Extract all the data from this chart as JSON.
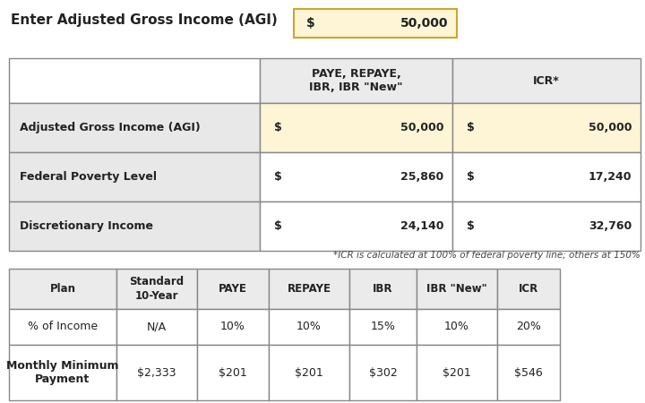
{
  "title_label": "Enter Adjusted Gross Income (AGI)",
  "agi_value": "50,000",
  "top_table": {
    "col_headers": [
      "",
      "PAYE, REPAYE,\nIBR, IBR \"New\"",
      "ICR*"
    ],
    "rows": [
      [
        "Adjusted Gross Income (AGI)",
        "$",
        "50,000",
        "$",
        "50,000"
      ],
      [
        "Federal Poverty Level",
        "$",
        "25,860",
        "$",
        "17,240"
      ],
      [
        "Discretionary Income",
        "$",
        "24,140",
        "$",
        "32,760"
      ]
    ]
  },
  "top_row_colors": [
    "#fdf5d6",
    "#ffffff",
    "#ffffff"
  ],
  "footnote": "*ICR is calculated at 100% of federal poverty line; others at 150%",
  "bottom_table": {
    "col_headers": [
      "Plan",
      "Standard\n10-Year",
      "PAYE",
      "REPAYE",
      "IBR",
      "IBR \"New\"",
      "ICR"
    ],
    "rows": [
      [
        "% of Income",
        "N/A",
        "10%",
        "10%",
        "15%",
        "10%",
        "20%"
      ],
      [
        "Monthly Minimum\nPayment",
        "$2,333",
        "$201",
        "$201",
        "$302",
        "$201",
        "$546"
      ]
    ]
  },
  "color_header_bg": "#ebebeb",
  "color_yellow": "#fdf5d6",
  "color_row_light": "#e8e8e8",
  "color_white": "#ffffff",
  "color_border": "#888888",
  "color_text": "#222222",
  "color_input_border": "#c8a830",
  "color_footnote": "#444444"
}
